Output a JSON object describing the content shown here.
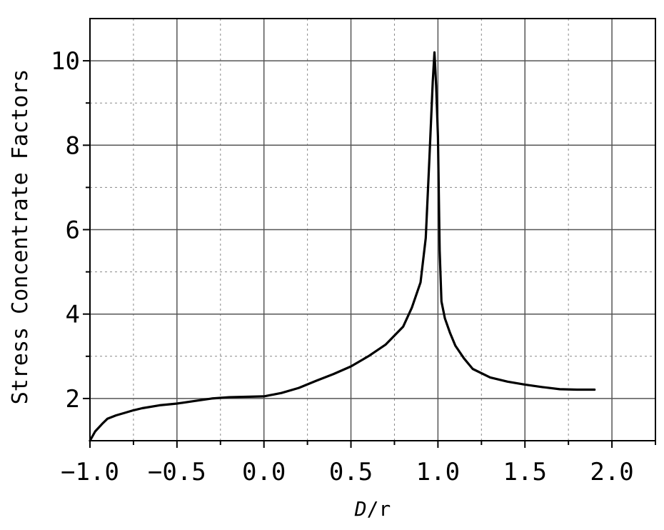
{
  "chart_data": {
    "type": "line",
    "title": "",
    "xlabel_italic": "D",
    "xlabel_rest": "/r",
    "ylabel": "Stress Concentrate Factors",
    "xlim": [
      -1.0,
      2.25
    ],
    "ylim": [
      1.0,
      11.0
    ],
    "x_major_ticks": [
      -1.0,
      -0.5,
      0.0,
      0.5,
      1.0,
      1.5,
      2.0
    ],
    "x_tick_labels": [
      "−1.0",
      "−0.5",
      "0.0",
      "0.5",
      "1.0",
      "1.5",
      "2.0"
    ],
    "x_minor_ticks": [
      -0.75,
      -0.25,
      0.25,
      0.75,
      1.25,
      1.75,
      2.25
    ],
    "y_major_ticks": [
      2,
      4,
      6,
      8,
      10
    ],
    "y_tick_labels": [
      "2",
      "4",
      "6",
      "8",
      "10"
    ],
    "y_minor_ticks": [
      3,
      5,
      7,
      9,
      11
    ],
    "grid": true,
    "legend": "none",
    "series": [
      {
        "x": [
          -1.0,
          -0.97,
          -0.93,
          -0.9,
          -0.85,
          -0.8,
          -0.75,
          -0.7,
          -0.6,
          -0.5,
          -0.4,
          -0.3,
          -0.2,
          -0.1,
          0.0,
          0.1,
          0.2,
          0.3,
          0.4,
          0.5,
          0.6,
          0.7,
          0.8,
          0.85,
          0.9,
          0.93,
          0.95,
          0.97,
          0.98,
          0.99,
          1.0,
          1.01,
          1.02,
          1.04,
          1.07,
          1.1,
          1.15,
          1.2,
          1.3,
          1.4,
          1.5,
          1.6,
          1.7,
          1.8,
          1.9
        ],
        "y": [
          1.0,
          1.22,
          1.4,
          1.52,
          1.6,
          1.66,
          1.72,
          1.77,
          1.84,
          1.88,
          1.94,
          2.0,
          2.03,
          2.04,
          2.05,
          2.13,
          2.25,
          2.42,
          2.58,
          2.76,
          3.0,
          3.28,
          3.7,
          4.15,
          4.75,
          5.8,
          7.6,
          9.5,
          10.2,
          9.4,
          8.2,
          5.5,
          4.3,
          3.9,
          3.55,
          3.25,
          2.95,
          2.7,
          2.5,
          2.4,
          2.33,
          2.27,
          2.22,
          2.21,
          2.21
        ]
      }
    ]
  }
}
